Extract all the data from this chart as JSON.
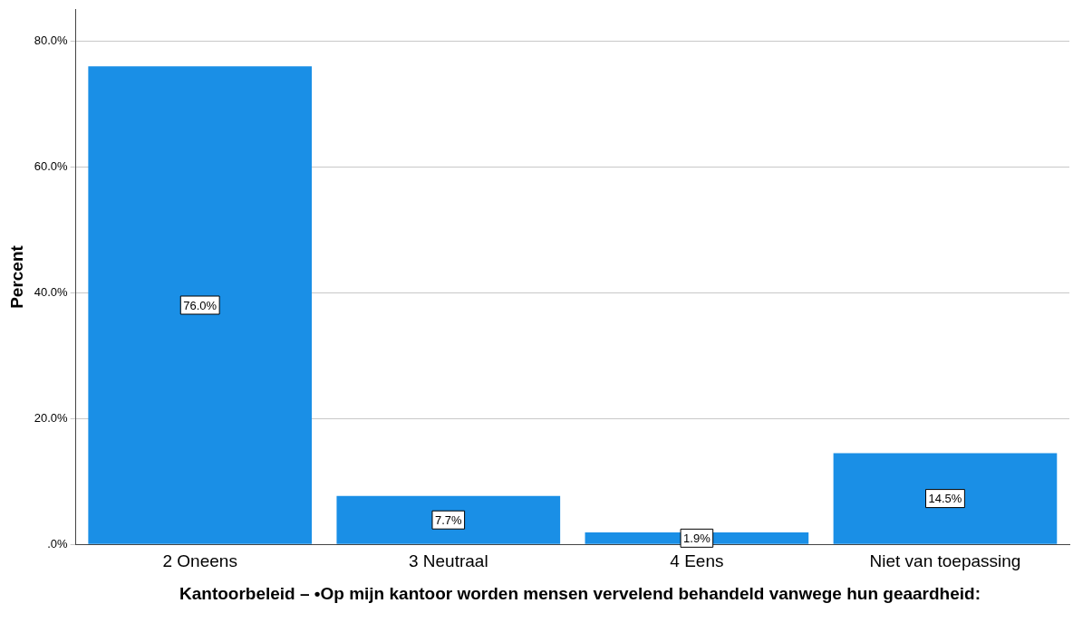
{
  "chart_data": {
    "type": "bar",
    "xlabel": "Kantoorbeleid – •Op mijn kantoor worden mensen vervelend behandeld vanwege hun geaardheid:",
    "ylabel": "Percent",
    "categories": [
      "2 Oneens",
      "3 Neutraal",
      "4 Eens",
      "Niet van toepassing"
    ],
    "values": [
      76.0,
      7.7,
      1.9,
      14.5
    ],
    "color": "#1a8fe6",
    "value_labels": [
      "76.0%",
      "7.7%",
      "1.9%",
      "14.5%"
    ],
    "ylim": [
      0,
      85
    ],
    "yticks": [
      {
        "value": 0,
        "label": ".0%"
      },
      {
        "value": 20,
        "label": "20.0%"
      },
      {
        "value": 40,
        "label": "40.0%"
      },
      {
        "value": 60,
        "label": "60.0%"
      },
      {
        "value": 80,
        "label": "80.0%"
      }
    ],
    "grid": "y",
    "legend": false
  }
}
